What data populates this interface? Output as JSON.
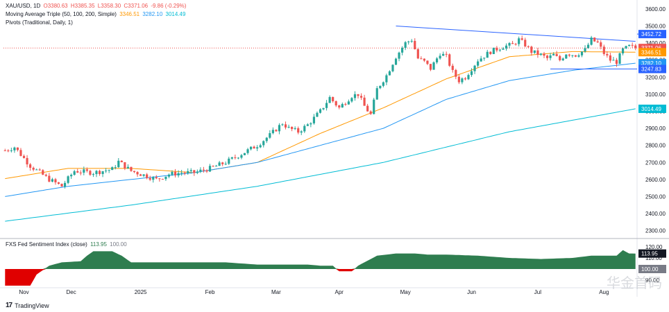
{
  "legend": {
    "symbol": "XAU/USD, 1D",
    "open": "O3380.63",
    "high": "H3385.35",
    "low": "L3358.30",
    "close": "C3371.06",
    "change": "-9.86 (-0.29%)",
    "ma_label": "Moving Average Triple (50, 100, 200, Simple)",
    "ma50": "3346.51",
    "ma100": "3282.10",
    "ma200": "3014.49",
    "pivots_label": "Pivots (Traditional, Daily, 1)",
    "fed_label": "FXS Fed Sentiment Index (close)",
    "fed_value": "113.95",
    "fed_base": "100.00"
  },
  "footer": {
    "brand": "TradingView"
  },
  "watermark": "华金首码",
  "colors": {
    "up": "#26a69a",
    "down": "#ef5350",
    "ma50": "#ff9800",
    "ma100": "#2196f3",
    "ma200": "#00bcd4",
    "trend": "#2962ff",
    "fed_pos": "#2e7d4f",
    "fed_neg": "#e00000"
  },
  "chart_data": [
    {
      "type": "candlestick",
      "title": "XAU/USD, 1D",
      "x_labels": [
        "Nov",
        "Dec",
        "2025",
        "Feb",
        "Mar",
        "Apr",
        "May",
        "Jun",
        "Jul",
        "Aug"
      ],
      "y_ticks": [
        2300,
        2400,
        2500,
        2600,
        2700,
        2800,
        2900,
        3000,
        3100,
        3200,
        3300,
        3400,
        3500,
        3600
      ],
      "ylim": [
        2270,
        3620
      ],
      "price_tags": [
        {
          "label": "3452.72",
          "value": 3452.72,
          "color": "#2962ff"
        },
        {
          "label": "3371.06",
          "value": 3371.06,
          "color": "#ef5350"
        },
        {
          "label": "3346.51",
          "value": 3346.51,
          "color": "#ff9800"
        },
        {
          "label": "3282.10",
          "value": 3282.1,
          "color": "#2196f3"
        },
        {
          "label": "3247.83",
          "value": 3247.83,
          "color": "#2962ff"
        },
        {
          "label": "3014.49",
          "value": 3014.49,
          "color": "#00bcd4"
        }
      ],
      "close_anchors": [
        [
          0,
          2770
        ],
        [
          3,
          2790
        ],
        [
          8,
          2680
        ],
        [
          14,
          2600
        ],
        [
          18,
          2560
        ],
        [
          22,
          2650
        ],
        [
          28,
          2640
        ],
        [
          34,
          2660
        ],
        [
          36,
          2705
        ],
        [
          40,
          2650
        ],
        [
          45,
          2620
        ],
        [
          48,
          2600
        ],
        [
          52,
          2630
        ],
        [
          56,
          2640
        ],
        [
          60,
          2640
        ],
        [
          65,
          2665
        ],
        [
          70,
          2700
        ],
        [
          75,
          2750
        ],
        [
          80,
          2800
        ],
        [
          84,
          2860
        ],
        [
          88,
          2930
        ],
        [
          90,
          2900
        ],
        [
          93,
          2880
        ],
        [
          96,
          2920
        ],
        [
          100,
          3000
        ],
        [
          103,
          3080
        ],
        [
          106,
          3020
        ],
        [
          110,
          3090
        ],
        [
          112,
          3100
        ],
        [
          114,
          3030
        ],
        [
          116,
          2980
        ],
        [
          118,
          3130
        ],
        [
          121,
          3210
        ],
        [
          124,
          3320
        ],
        [
          127,
          3400
        ],
        [
          129,
          3420
        ],
        [
          131,
          3310
        ],
        [
          133,
          3290
        ],
        [
          135,
          3250
        ],
        [
          138,
          3340
        ],
        [
          140,
          3320
        ],
        [
          142,
          3230
        ],
        [
          144,
          3180
        ],
        [
          146,
          3200
        ],
        [
          150,
          3300
        ],
        [
          154,
          3350
        ],
        [
          158,
          3380
        ],
        [
          161,
          3390
        ],
        [
          163,
          3420
        ],
        [
          165,
          3390
        ],
        [
          167,
          3350
        ],
        [
          170,
          3330
        ],
        [
          172,
          3310
        ],
        [
          174,
          3330
        ],
        [
          176,
          3300
        ],
        [
          178,
          3340
        ],
        [
          181,
          3330
        ],
        [
          184,
          3360
        ],
        [
          186,
          3420
        ],
        [
          188,
          3400
        ],
        [
          190,
          3340
        ],
        [
          192,
          3300
        ],
        [
          194,
          3290
        ],
        [
          196,
          3360
        ],
        [
          198,
          3380
        ],
        [
          200,
          3371
        ]
      ],
      "series": [
        {
          "name": "50",
          "anchors": [
            [
              0,
              2605
            ],
            [
              20,
              2665
            ],
            [
              40,
              2665
            ],
            [
              60,
              2640
            ],
            [
              80,
              2700
            ],
            [
              100,
              2870
            ],
            [
              120,
              3020
            ],
            [
              140,
              3190
            ],
            [
              160,
              3320
            ],
            [
              180,
              3350
            ],
            [
              200,
              3346.51
            ]
          ]
        },
        {
          "name": "100",
          "anchors": [
            [
              0,
              2500
            ],
            [
              20,
              2560
            ],
            [
              40,
              2600
            ],
            [
              60,
              2640
            ],
            [
              80,
              2700
            ],
            [
              100,
              2800
            ],
            [
              120,
              2900
            ],
            [
              140,
              3070
            ],
            [
              160,
              3180
            ],
            [
              180,
              3240
            ],
            [
              200,
              3282.1
            ]
          ]
        },
        {
          "name": "200",
          "anchors": [
            [
              0,
              2355
            ],
            [
              40,
              2450
            ],
            [
              80,
              2560
            ],
            [
              120,
              2700
            ],
            [
              160,
              2880
            ],
            [
              200,
              3014.49
            ]
          ]
        }
      ],
      "trendlines": [
        {
          "from": [
            124,
            3500
          ],
          "to": [
            200,
            3410
          ]
        },
        {
          "from": [
            173,
            3247.83
          ],
          "to": [
            210,
            3247.83
          ]
        },
        {
          "from": [
            201,
            3452.72
          ],
          "to": [
            210,
            3452.72
          ]
        }
      ],
      "resistance_level": 3371.06
    },
    {
      "type": "area",
      "title": "FXS Fed Sentiment Index (close)",
      "ylim": [
        85,
        125
      ],
      "y_ticks": [
        90,
        100,
        110,
        120
      ],
      "baseline": 100,
      "anchors": [
        [
          0,
          85
        ],
        [
          8,
          85
        ],
        [
          10,
          95
        ],
        [
          14,
          103
        ],
        [
          18,
          106
        ],
        [
          24,
          107
        ],
        [
          26,
          112
        ],
        [
          28,
          116
        ],
        [
          34,
          116
        ],
        [
          37,
          112
        ],
        [
          40,
          106
        ],
        [
          60,
          106
        ],
        [
          62,
          106
        ],
        [
          70,
          106
        ],
        [
          80,
          104
        ],
        [
          90,
          104
        ],
        [
          96,
          104
        ],
        [
          100,
          103
        ],
        [
          104,
          103
        ],
        [
          106,
          98
        ],
        [
          110,
          98
        ],
        [
          112,
          103
        ],
        [
          114,
          106
        ],
        [
          118,
          112
        ],
        [
          124,
          114
        ],
        [
          130,
          114
        ],
        [
          134,
          113
        ],
        [
          140,
          113
        ],
        [
          150,
          112
        ],
        [
          160,
          110
        ],
        [
          170,
          109
        ],
        [
          180,
          110
        ],
        [
          186,
          112
        ],
        [
          194,
          112
        ],
        [
          196,
          117
        ],
        [
          198,
          114
        ],
        [
          200,
          113.95
        ]
      ]
    }
  ]
}
